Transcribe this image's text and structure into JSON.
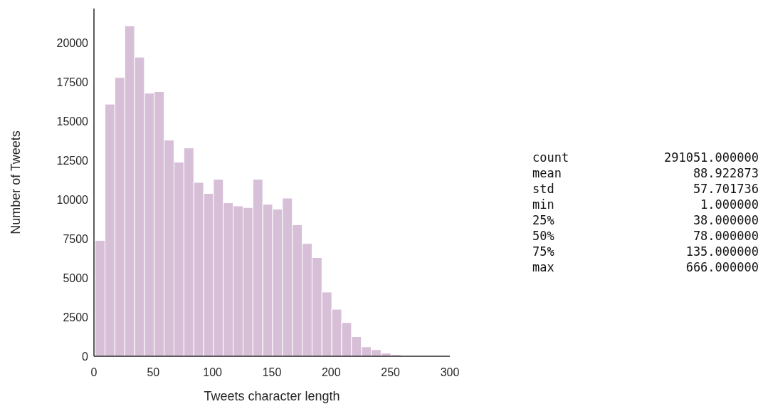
{
  "chart_data": {
    "type": "histogram",
    "xlabel": "Tweets character length",
    "ylabel": "Number of Tweets",
    "color": "#d8bfd8",
    "bins": [
      1,
      9.3125,
      17.625,
      25.9375,
      34.25,
      42.5625,
      50.875,
      59.1875,
      67.5,
      75.8125,
      84.125,
      92.4375,
      100.75,
      109.0625,
      117.375,
      125.6875,
      134,
      142.3125,
      150.625,
      158.9375,
      167.25,
      175.5625,
      183.875,
      192.1875,
      200.5,
      208.8125,
      217.125,
      225.4375,
      233.75,
      242.0625,
      250.375,
      258.6875
    ],
    "values": [
      7400,
      16100,
      17800,
      21100,
      19100,
      16800,
      16900,
      13800,
      12400,
      13300,
      11100,
      10400,
      11300,
      9800,
      9600,
      9500,
      11300,
      9700,
      9400,
      10100,
      8400,
      7200,
      6300,
      4100,
      3000,
      2150,
      1250,
      600,
      420,
      200,
      100
    ],
    "xlim": [
      0,
      300
    ],
    "xticks": [
      0,
      50,
      100,
      150,
      200,
      250,
      300
    ],
    "ylim": [
      0,
      22200
    ],
    "yticks": [
      0,
      2500,
      5000,
      7500,
      10000,
      12500,
      15000,
      17500,
      20000
    ],
    "grid": false,
    "annotations": [
      "count 291051.000000",
      "mean 88.922873",
      "std 57.701736",
      "min 1.000000",
      "25% 38.000000",
      "50% 78.000000",
      "75% 135.000000",
      "max 666.000000"
    ]
  }
}
